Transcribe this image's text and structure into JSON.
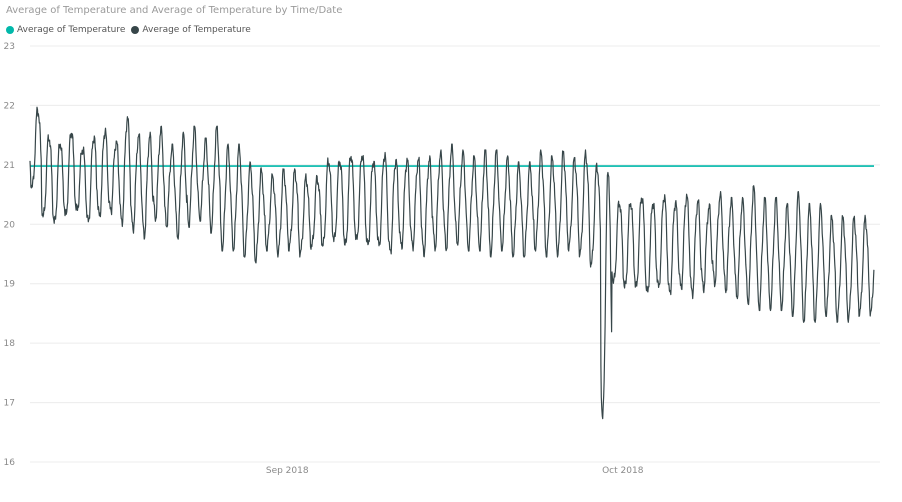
{
  "chart_data": {
    "type": "line",
    "title": "Average of Temperature and Average of Temperature by Time/Date",
    "xlabel": "",
    "ylabel": "",
    "ylim": [
      16,
      23
    ],
    "yticks": [
      16,
      17,
      18,
      19,
      20,
      21,
      22,
      23
    ],
    "xlim": [
      "2018-08-09",
      "2018-10-24"
    ],
    "xticks": [
      {
        "label": "Sep 2018",
        "date": "2018-09-01"
      },
      {
        "label": "Oct 2018",
        "date": "2018-10-01"
      }
    ],
    "grid": "horizontal",
    "legend": "top-left",
    "series": [
      {
        "name": "Average of Temperature",
        "color": "#01B8AA",
        "kind": "constant",
        "value": 20.98
      },
      {
        "name": "Average of Temperature",
        "color": "#374649",
        "kind": "daily-cycle",
        "start": "2018-08-09",
        "end": "2018-10-24",
        "daily_peaks": [
          21.95,
          21.5,
          21.4,
          21.6,
          21.3,
          21.5,
          21.6,
          21.4,
          21.8,
          21.5,
          21.5,
          21.6,
          21.3,
          21.5,
          21.6,
          21.4,
          21.6,
          21.3,
          21.3,
          21.0,
          20.9,
          20.8,
          20.9,
          20.9,
          20.8,
          20.8,
          21.1,
          21.1,
          21.2,
          21.2,
          21.1,
          21.2,
          21.1,
          21.1,
          21.1,
          21.1,
          21.2,
          21.3,
          21.2,
          21.1,
          21.2,
          21.2,
          21.1,
          21.0,
          21.0,
          21.2,
          21.1,
          21.2,
          21.1,
          21.2,
          21.0,
          20.95,
          20.4,
          20.4,
          20.5,
          20.4,
          20.5,
          20.4,
          20.5,
          20.4,
          20.3,
          20.5,
          20.4,
          20.4,
          20.6,
          20.4,
          20.4,
          20.3,
          20.5,
          20.3,
          20.3,
          20.1,
          20.1,
          20.1,
          20.1,
          20.1
        ],
        "daily_troughs": [
          20.6,
          20.1,
          20.0,
          20.1,
          20.2,
          20.0,
          20.1,
          20.2,
          20.0,
          19.9,
          19.8,
          20.1,
          20.0,
          19.8,
          20.0,
          20.1,
          19.9,
          19.6,
          19.6,
          19.5,
          19.4,
          19.6,
          19.5,
          19.6,
          19.5,
          19.6,
          19.6,
          19.7,
          19.6,
          19.7,
          19.6,
          19.6,
          19.5,
          19.6,
          19.6,
          19.5,
          19.6,
          19.6,
          19.7,
          19.6,
          19.6,
          19.5,
          19.6,
          19.5,
          19.5,
          19.6,
          19.5,
          19.5,
          19.6,
          19.5,
          19.3,
          16.7,
          19.0,
          18.9,
          18.9,
          18.8,
          18.9,
          18.8,
          18.9,
          18.8,
          18.9,
          19.0,
          18.9,
          18.8,
          18.7,
          18.6,
          18.6,
          18.6,
          18.5,
          18.4,
          18.4,
          18.5,
          18.4,
          18.4,
          18.5,
          18.5
        ]
      }
    ]
  }
}
